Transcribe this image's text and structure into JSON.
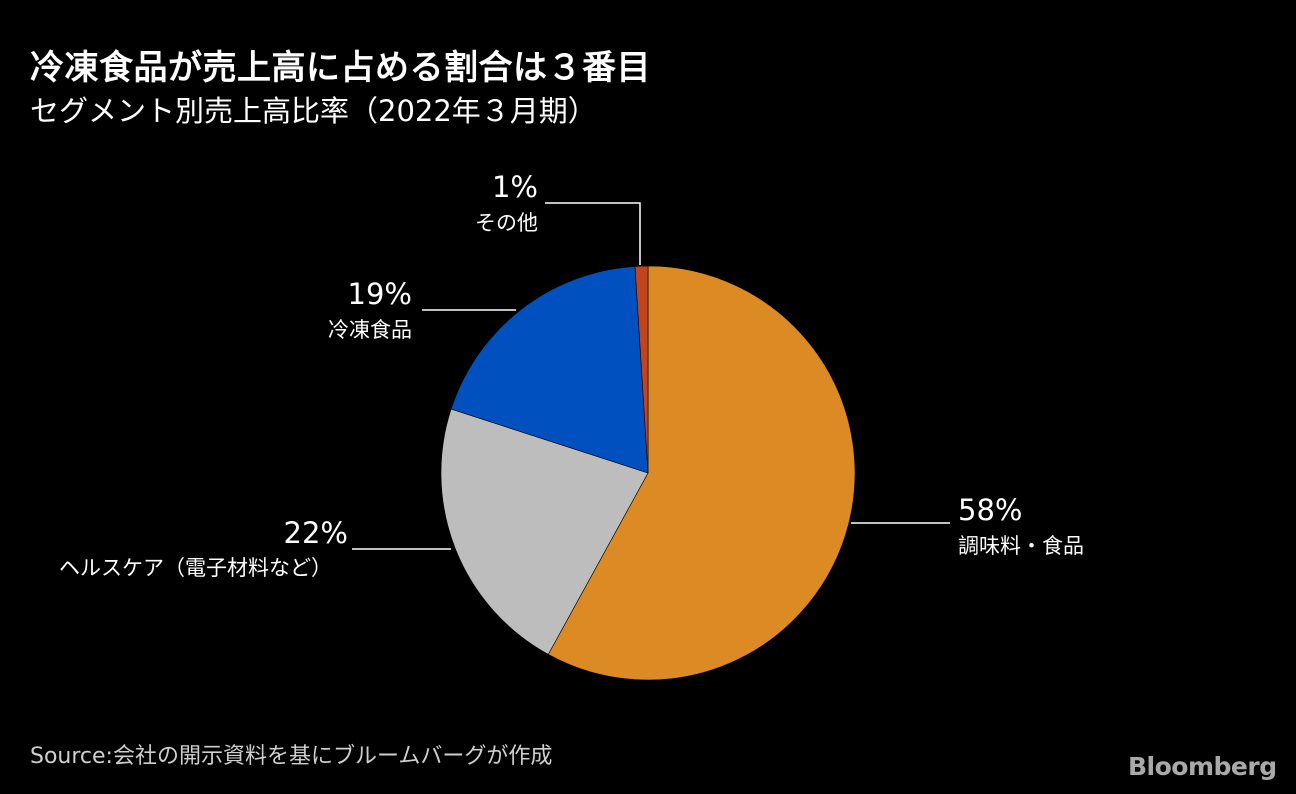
{
  "title": "冷凍食品が売上高に占める割合は３番目",
  "subtitle": "セグメント別売上高比率（2022年３月期）",
  "source": "Source:会社の開示資料を基にブルームバーグが作成",
  "logo": "Bloomberg",
  "chart_data": {
    "type": "pie",
    "title": "冷凍食品が売上高に占める割合は３番目",
    "subtitle": "セグメント別売上高比率（2022年３月期）",
    "slices": [
      {
        "name": "調味料・食品",
        "value": 58,
        "label": "58%",
        "color": "#dc8a23"
      },
      {
        "name": "ヘルスケア（電子材料など）",
        "value": 22,
        "label": "22%",
        "color": "#bdbdbd"
      },
      {
        "name": "冷凍食品",
        "value": 19,
        "label": "19%",
        "color": "#0051bf"
      },
      {
        "name": "その他",
        "value": 1,
        "label": "1%",
        "color": "#c2441f"
      }
    ]
  }
}
